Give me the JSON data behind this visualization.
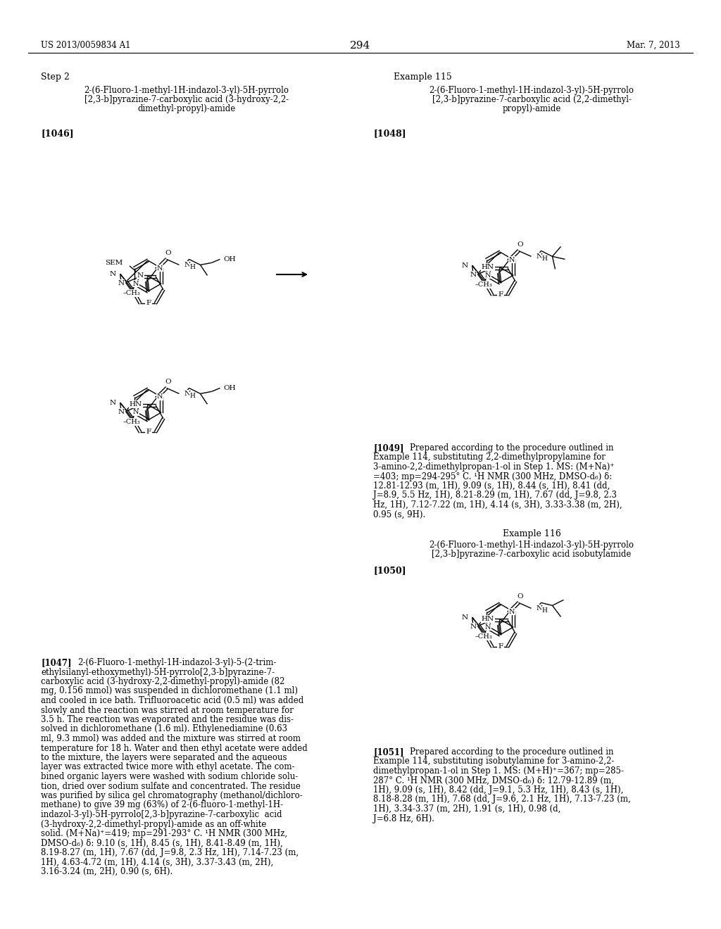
{
  "page_number": "294",
  "patent_left": "US 2013/0059834 A1",
  "patent_right": "Mar. 7, 2013",
  "background_color": "#ffffff",
  "step2_label": "Step 2",
  "example115_label": "Example 115",
  "example116_label": "Example 116",
  "name_1046_lines": [
    "2-(6-Fluoro-1-methyl-1H-indazol-3-yl)-5H-pyrrolo",
    "[2,3-b]pyrazine-7-carboxylic acid (3-hydroxy-2,2-",
    "dimethyl-propyl)-amide"
  ],
  "name_1048_lines": [
    "2-(6-Fluoro-1-methyl-1H-indazol-3-yl)-5H-pyrrolo",
    "[2,3-b]pyrazine-7-carboxylic acid (2,2-dimethyl-",
    "propyl)-amide"
  ],
  "name_1050_lines": [
    "2-(6-Fluoro-1-methyl-1H-indazol-3-yl)-5H-pyrrolo",
    "[2,3-b]pyrazine-7-carboxylic acid isobutylamide"
  ],
  "ref_1046": "[1046]",
  "ref_1047": "[1047]",
  "ref_1048": "[1048]",
  "ref_1049": "[1049]",
  "ref_1050": "[1050]",
  "ref_1051": "[1051]",
  "text_1047_lines": [
    "2-(6-Fluoro-1-methyl-1H-indazol-3-yl)-5-(2-trim-",
    "ethylsilanyl-ethoxymethyl)-5H-pyrrolo[2,3-b]pyrazine-7-",
    "carboxylic acid (3-hydroxy-2,2-dimethyl-propyl)-amide (82",
    "mg, 0.156 mmol) was suspended in dichloromethane (1.1 ml)",
    "and cooled in ice bath. Trifluoroacetic acid (0.5 ml) was added",
    "slowly and the reaction was stirred at room temperature for",
    "3.5 h. The reaction was evaporated and the residue was dis-",
    "solved in dichloromethane (1.6 ml). Ethylenediamine (0.63",
    "ml, 9.3 mmol) was added and the mixture was stirred at room",
    "temperature for 18 h. Water and then ethyl acetate were added",
    "to the mixture, the layers were separated and the aqueous",
    "layer was extracted twice more with ethyl acetate. The com-",
    "bined organic layers were washed with sodium chloride solu-",
    "tion, dried over sodium sulfate and concentrated. The residue",
    "was purified by silica gel chromatography (methanol/dichloro-",
    "methane) to give 39 mg (63%) of 2-(6-fluoro-1-methyl-1H-",
    "indazol-3-yl)-5H-pyrrolo[2,3-b]pyrazine-7-carboxylic  acid",
    "(3-hydroxy-2,2-dimethyl-propyl)-amide as an off-white",
    "solid. (M+Na)⁺=419; mp=291-293° C. ¹H NMR (300 MHz,",
    "DMSO-d₆) δ: 9.10 (s, 1H), 8.45 (s, 1H), 8.41-8.49 (m, 1H),",
    "8.19-8.27 (m, 1H), 7.67 (dd, J=9.8, 2.3 Hz, 1H), 7.14-7.23 (m,",
    "1H), 4.63-4.72 (m, 1H), 4.14 (s, 3H), 3.37-3.43 (m, 2H),",
    "3.16-3.24 (m, 2H), 0.90 (s, 6H)."
  ],
  "text_1049_lines": [
    "Prepared according to the procedure outlined in",
    "Example 114, substituting 2,2-dimethylpropylamine for",
    "3-amino-2,2-dimethylpropan-1-ol in Step 1. MS: (M+Na)⁺",
    "=403; mp=294-295° C. ¹H NMR (300 MHz, DMSO-d₆) δ:",
    "12.81-12.93 (m, 1H), 9.09 (s, 1H), 8.44 (s, 1H), 8.41 (dd,",
    "J=8.9, 5.5 Hz, 1H), 8.21-8.29 (m, 1H), 7.67 (dd, J=9.8, 2.3",
    "Hz, 1H), 7.12-7.22 (m, 1H), 4.14 (s, 3H), 3.33-3.38 (m, 2H),",
    "0.95 (s, 9H)."
  ],
  "text_1051_lines": [
    "Prepared according to the procedure outlined in",
    "Example 114, substituting isobutylamine for 3-amino-2,2-",
    "dimethylpropan-1-ol in Step 1. MS: (M+H)⁺=367; mp=285-",
    "287° C. ¹H NMR (300 MHz, DMSO-d₆) δ: 12.79-12.89 (m,",
    "1H), 9.09 (s, 1H), 8.42 (dd, J=9.1, 5.3 Hz, 1H), 8.43 (s, 1H),",
    "8.18-8.28 (m, 1H), 7.68 (dd, J=9.6, 2.1 Hz, 1H), 7.13-7.23 (m,",
    "1H), 3.34-3.37 (m, 2H), 1.91 (s, 1H), 0.98 (d,",
    "J=6.8 Hz, 6H)."
  ]
}
